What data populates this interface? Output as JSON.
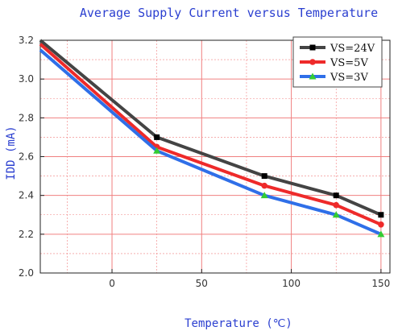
{
  "chart_data": {
    "type": "line",
    "title": "Average Supply Current versus Temperature",
    "xlabel": "Temperature (℃)",
    "ylabel": "IDD (mA)",
    "xlim": [
      -40,
      155
    ],
    "ylim": [
      2.0,
      3.2
    ],
    "xticks": [
      "0",
      "50",
      "100",
      "150"
    ],
    "yticks": [
      "2.0",
      "2.2",
      "2.4",
      "2.6",
      "2.8",
      "3.0",
      "3.2"
    ],
    "grid": true,
    "legend_position": "top-right",
    "x": [
      -40,
      25,
      85,
      125,
      150
    ],
    "series": [
      {
        "name": "VS=24V",
        "values": [
          3.2,
          2.7,
          2.5,
          2.4,
          2.3
        ],
        "color": "#444444",
        "marker": "square"
      },
      {
        "name": "VS=5V",
        "values": [
          3.18,
          2.65,
          2.45,
          2.35,
          2.25
        ],
        "color": "#ee2a2a",
        "marker": "circle"
      },
      {
        "name": "VS=3V",
        "values": [
          3.15,
          2.63,
          2.4,
          2.3,
          2.2
        ],
        "color": "#2f6fe8",
        "marker": "triangle"
      }
    ],
    "colors": {
      "grid": "#f08080",
      "frame": "#222222",
      "title": "#2b3fd0"
    }
  }
}
